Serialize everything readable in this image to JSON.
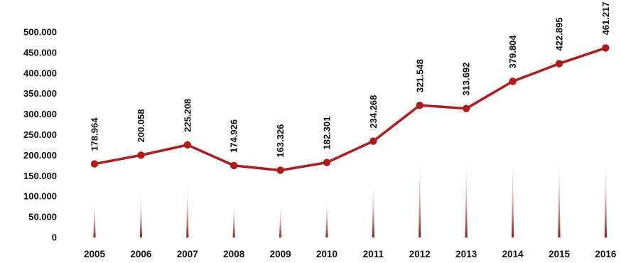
{
  "chart_data": {
    "type": "line",
    "categories": [
      "2005",
      "2006",
      "2007",
      "2008",
      "2009",
      "2010",
      "2011",
      "2012",
      "2013",
      "2014",
      "2015",
      "2016"
    ],
    "values": [
      178964,
      200058,
      225208,
      174926,
      163326,
      182301,
      234268,
      321548,
      313692,
      379804,
      422895,
      461217
    ],
    "data_labels": [
      "178.964",
      "200.058",
      "225.208",
      "174.926",
      "163.326",
      "182.301",
      "234.268",
      "321.548",
      "313.692",
      "379.804",
      "422.895",
      "461.217"
    ],
    "y_ticks": [
      "0",
      "50.000",
      "100.000",
      "150.000",
      "200.000",
      "250.000",
      "300.000",
      "350.000",
      "400.000",
      "450.000",
      "500.000"
    ],
    "ylim": [
      0,
      500000
    ],
    "title": "",
    "xlabel": "",
    "ylabel": "",
    "grid": false,
    "line_color": "#b01c1c",
    "spike_color": "#8b1a1a"
  }
}
